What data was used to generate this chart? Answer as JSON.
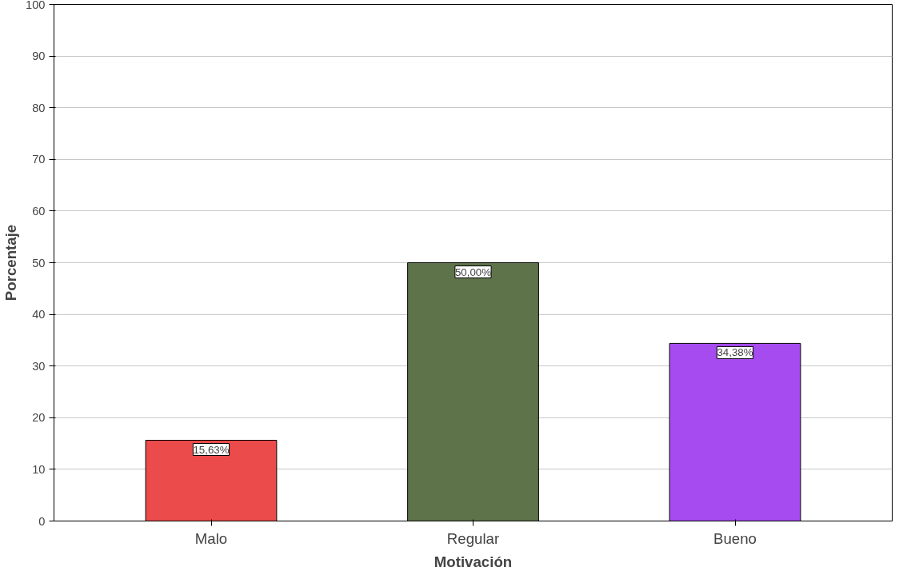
{
  "chart_data": {
    "type": "bar",
    "xlabel": "Motivación",
    "ylabel": "Porcentaje",
    "categories": [
      "Malo",
      "Regular",
      "Bueno"
    ],
    "values": [
      15.63,
      50.0,
      34.38
    ],
    "colors": [
      "#eb4b4b",
      "#5e734a",
      "#a64bf0"
    ],
    "value_labels": [
      "15,63%",
      "50,00%",
      "34,38%"
    ],
    "ylim": [
      0,
      100
    ],
    "yticks": [
      0,
      10,
      20,
      30,
      40,
      50,
      60,
      70,
      80,
      90,
      100
    ],
    "grid": "y"
  }
}
